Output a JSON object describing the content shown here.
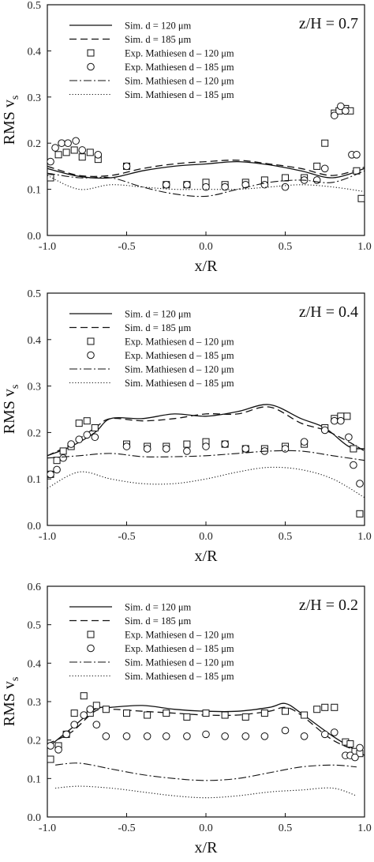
{
  "chart_data": [
    {
      "type": "line",
      "panel_label": "z/H = 0.7",
      "xlabel": "x/R",
      "ylabel": "RMS v",
      "ylabel_sub": "s",
      "xlim": [
        -1.0,
        1.0
      ],
      "ylim": [
        0.0,
        0.5
      ],
      "xticks": [
        "-1.0",
        "-0.5",
        "0.0",
        "0.5",
        "1.0"
      ],
      "yticks": [
        "0.0",
        "0.1",
        "0.2",
        "0.3",
        "0.4",
        "0.5"
      ],
      "grid": false,
      "legend_position": "top-left",
      "series": [
        {
          "name": "Sim. d = 120 μm",
          "style": "solid",
          "x": [
            -1.0,
            -0.8,
            -0.6,
            -0.4,
            -0.2,
            0.0,
            0.2,
            0.4,
            0.6,
            0.8,
            1.0
          ],
          "y": [
            0.145,
            0.128,
            0.125,
            0.14,
            0.15,
            0.155,
            0.16,
            0.153,
            0.14,
            0.125,
            0.145
          ]
        },
        {
          "name": "Sim. d = 185 μm",
          "style": "dashed",
          "x": [
            -1.0,
            -0.8,
            -0.6,
            -0.4,
            -0.2,
            0.0,
            0.2,
            0.4,
            0.6,
            0.8,
            1.0
          ],
          "y": [
            0.15,
            0.13,
            0.13,
            0.145,
            0.155,
            0.16,
            0.163,
            0.155,
            0.145,
            0.13,
            0.148
          ]
        },
        {
          "name": "Exp. Mathiesen d – 120 μm",
          "style": "square-marker",
          "x": [
            -0.98,
            -0.93,
            -0.88,
            -0.83,
            -0.78,
            -0.73,
            -0.68,
            -0.5,
            -0.25,
            -0.12,
            0.0,
            0.12,
            0.25,
            0.37,
            0.5,
            0.62,
            0.7,
            0.75,
            0.81,
            0.84,
            0.88,
            0.91,
            0.95,
            0.98
          ],
          "y": [
            0.125,
            0.175,
            0.18,
            0.185,
            0.17,
            0.18,
            0.165,
            0.15,
            0.11,
            0.11,
            0.115,
            0.11,
            0.115,
            0.12,
            0.125,
            0.125,
            0.15,
            0.2,
            0.265,
            0.27,
            0.275,
            0.27,
            0.14,
            0.08
          ]
        },
        {
          "name": "Exp. Mathiesen d – 185 μm",
          "style": "circle-marker",
          "x": [
            -0.98,
            -0.95,
            -0.91,
            -0.87,
            -0.82,
            -0.78,
            -0.68,
            -0.5,
            -0.25,
            -0.12,
            0.0,
            0.12,
            0.25,
            0.37,
            0.5,
            0.62,
            0.7,
            0.75,
            0.81,
            0.85,
            0.88,
            0.92,
            0.95
          ],
          "y": [
            0.16,
            0.19,
            0.2,
            0.2,
            0.205,
            0.185,
            0.175,
            0.15,
            0.11,
            0.11,
            0.105,
            0.105,
            0.11,
            0.11,
            0.105,
            0.12,
            0.12,
            0.145,
            0.26,
            0.28,
            0.27,
            0.175,
            0.175
          ]
        },
        {
          "name": "Sim. Mathiesen d – 120 μm",
          "style": "dash-dot",
          "x": [
            -1.0,
            -0.8,
            -0.6,
            -0.4,
            -0.2,
            0.0,
            0.2,
            0.4,
            0.6,
            0.8,
            1.0
          ],
          "y": [
            0.135,
            0.125,
            0.125,
            0.105,
            0.09,
            0.085,
            0.1,
            0.115,
            0.12,
            0.115,
            0.14
          ]
        },
        {
          "name": "Sim. Mathiesen d – 185 μm",
          "style": "dotted",
          "x": [
            -1.0,
            -0.8,
            -0.6,
            -0.4,
            -0.2,
            0.0,
            0.2,
            0.4,
            0.6,
            0.8,
            1.0
          ],
          "y": [
            0.13,
            0.1,
            0.11,
            0.105,
            0.1,
            0.1,
            0.1,
            0.105,
            0.11,
            0.105,
            0.095
          ]
        }
      ]
    },
    {
      "type": "line",
      "panel_label": "z/H = 0.4",
      "xlabel": "x/R",
      "ylabel": "RMS v",
      "ylabel_sub": "s",
      "xlim": [
        -1.0,
        1.0
      ],
      "ylim": [
        0.0,
        0.5
      ],
      "xticks": [
        "-1.0",
        "-0.5",
        "0.0",
        "0.5",
        "1.0"
      ],
      "yticks": [
        "0.0",
        "0.1",
        "0.2",
        "0.3",
        "0.4",
        "0.5"
      ],
      "grid": false,
      "legend_position": "top-left",
      "series": [
        {
          "name": "Sim. d = 120 μm",
          "style": "solid",
          "x": [
            -1.0,
            -0.85,
            -0.7,
            -0.6,
            -0.4,
            -0.2,
            0.0,
            0.2,
            0.4,
            0.6,
            0.75,
            0.9,
            1.0
          ],
          "y": [
            0.15,
            0.17,
            0.2,
            0.23,
            0.23,
            0.24,
            0.235,
            0.245,
            0.26,
            0.23,
            0.21,
            0.17,
            0.165
          ]
        },
        {
          "name": "Sim. d = 185 μm",
          "style": "dashed",
          "x": [
            -1.0,
            -0.85,
            -0.7,
            -0.6,
            -0.4,
            -0.2,
            0.0,
            0.2,
            0.4,
            0.6,
            0.75,
            0.9,
            1.0
          ],
          "y": [
            0.15,
            0.175,
            0.21,
            0.23,
            0.225,
            0.23,
            0.24,
            0.24,
            0.255,
            0.22,
            0.205,
            0.18,
            0.16
          ]
        },
        {
          "name": "Exp. Mathiesen d – 120 μm",
          "style": "square-marker",
          "x": [
            -0.98,
            -0.94,
            -0.9,
            -0.85,
            -0.8,
            -0.75,
            -0.7,
            -0.5,
            -0.37,
            -0.25,
            -0.12,
            0.0,
            0.12,
            0.25,
            0.37,
            0.5,
            0.62,
            0.75,
            0.81,
            0.85,
            0.89,
            0.93,
            0.97
          ],
          "y": [
            0.11,
            0.14,
            0.16,
            0.17,
            0.22,
            0.225,
            0.21,
            0.175,
            0.17,
            0.17,
            0.175,
            0.18,
            0.175,
            0.165,
            0.165,
            0.17,
            0.175,
            0.21,
            0.23,
            0.235,
            0.235,
            0.165,
            0.025
          ]
        },
        {
          "name": "Exp. Mathiesen d – 185 μm",
          "style": "circle-marker",
          "x": [
            -0.98,
            -0.94,
            -0.9,
            -0.85,
            -0.8,
            -0.75,
            -0.7,
            -0.5,
            -0.37,
            -0.25,
            -0.12,
            0.0,
            0.12,
            0.25,
            0.37,
            0.5,
            0.62,
            0.75,
            0.81,
            0.85,
            0.9,
            0.93,
            0.97
          ],
          "y": [
            0.11,
            0.12,
            0.145,
            0.175,
            0.185,
            0.195,
            0.19,
            0.17,
            0.165,
            0.165,
            0.16,
            0.17,
            0.175,
            0.165,
            0.16,
            0.165,
            0.18,
            0.205,
            0.225,
            0.225,
            0.19,
            0.13,
            0.09
          ]
        },
        {
          "name": "Sim. Mathiesen d – 120 μm",
          "style": "dash-dot",
          "x": [
            -1.0,
            -0.8,
            -0.6,
            -0.4,
            -0.2,
            0.0,
            0.2,
            0.4,
            0.6,
            0.8,
            1.0
          ],
          "y": [
            0.145,
            0.15,
            0.155,
            0.148,
            0.148,
            0.15,
            0.155,
            0.16,
            0.16,
            0.15,
            0.14
          ]
        },
        {
          "name": "Sim. Mathiesen d – 185 μm",
          "style": "dotted",
          "x": [
            -1.0,
            -0.8,
            -0.6,
            -0.4,
            -0.2,
            0.0,
            0.2,
            0.4,
            0.6,
            0.8,
            1.0
          ],
          "y": [
            0.08,
            0.115,
            0.1,
            0.09,
            0.09,
            0.1,
            0.115,
            0.125,
            0.12,
            0.1,
            0.06
          ]
        }
      ]
    },
    {
      "type": "line",
      "panel_label": "z/H = 0.2",
      "xlabel": "x/R",
      "ylabel": "RMS v",
      "ylabel_sub": "s",
      "xlim": [
        -1.0,
        1.0
      ],
      "ylim": [
        0.0,
        0.6
      ],
      "xticks": [
        "-1.0",
        "-0.5",
        "0.0",
        "0.5",
        "1.0"
      ],
      "yticks": [
        "0.0",
        "0.1",
        "0.2",
        "0.3",
        "0.4",
        "0.5",
        "0.6"
      ],
      "grid": false,
      "legend_position": "top-left",
      "series": [
        {
          "name": "Sim. d = 120 μm",
          "style": "solid",
          "x": [
            -1.0,
            -0.85,
            -0.7,
            -0.6,
            -0.4,
            -0.2,
            0.0,
            0.2,
            0.4,
            0.5,
            0.6,
            0.8,
            1.0
          ],
          "y": [
            0.18,
            0.23,
            0.28,
            0.285,
            0.29,
            0.28,
            0.275,
            0.275,
            0.285,
            0.295,
            0.27,
            0.21,
            0.16
          ]
        },
        {
          "name": "Sim. d = 185 μm",
          "style": "dashed",
          "x": [
            -1.0,
            -0.85,
            -0.7,
            -0.6,
            -0.4,
            -0.2,
            0.0,
            0.2,
            0.4,
            0.5,
            0.6,
            0.8,
            1.0
          ],
          "y": [
            0.19,
            0.22,
            0.275,
            0.28,
            0.275,
            0.27,
            0.265,
            0.265,
            0.275,
            0.285,
            0.265,
            0.2,
            0.165
          ]
        },
        {
          "name": "Exp. Mathiesen d – 120 μm",
          "style": "square-marker",
          "x": [
            -0.98,
            -0.93,
            -0.88,
            -0.83,
            -0.77,
            -0.73,
            -0.69,
            -0.63,
            -0.5,
            -0.37,
            -0.25,
            -0.12,
            0.0,
            0.12,
            0.25,
            0.37,
            0.5,
            0.62,
            0.7,
            0.75,
            0.81,
            0.88,
            0.91,
            0.94,
            0.97
          ],
          "y": [
            0.15,
            0.185,
            0.215,
            0.27,
            0.315,
            0.27,
            0.29,
            0.28,
            0.27,
            0.265,
            0.27,
            0.26,
            0.27,
            0.265,
            0.26,
            0.27,
            0.275,
            0.265,
            0.28,
            0.285,
            0.285,
            0.195,
            0.19,
            0.17,
            0.165
          ]
        },
        {
          "name": "Exp. Mathiesen d – 185 μm",
          "style": "circle-marker",
          "x": [
            -0.98,
            -0.93,
            -0.88,
            -0.83,
            -0.77,
            -0.73,
            -0.69,
            -0.63,
            -0.5,
            -0.37,
            -0.25,
            -0.12,
            0.0,
            0.12,
            0.25,
            0.37,
            0.5,
            0.62,
            0.75,
            0.81,
            0.88,
            0.91,
            0.94,
            0.97
          ],
          "y": [
            0.185,
            0.175,
            0.215,
            0.24,
            0.265,
            0.28,
            0.24,
            0.21,
            0.21,
            0.21,
            0.21,
            0.21,
            0.215,
            0.21,
            0.21,
            0.21,
            0.225,
            0.21,
            0.215,
            0.22,
            0.16,
            0.16,
            0.155,
            0.18
          ]
        },
        {
          "name": "Sim. Mathiesen d – 120 μm",
          "style": "dash-dot",
          "x": [
            -0.95,
            -0.8,
            -0.6,
            -0.4,
            -0.2,
            0.0,
            0.2,
            0.4,
            0.6,
            0.8,
            0.95
          ],
          "y": [
            0.135,
            0.14,
            0.125,
            0.11,
            0.1,
            0.095,
            0.1,
            0.115,
            0.13,
            0.135,
            0.13
          ]
        },
        {
          "name": "Sim. Mathiesen d – 185 μm",
          "style": "dotted",
          "x": [
            -0.95,
            -0.8,
            -0.6,
            -0.4,
            -0.2,
            0.0,
            0.2,
            0.4,
            0.6,
            0.8,
            0.95
          ],
          "y": [
            0.075,
            0.08,
            0.075,
            0.065,
            0.055,
            0.05,
            0.055,
            0.065,
            0.07,
            0.075,
            0.055
          ]
        }
      ]
    }
  ]
}
